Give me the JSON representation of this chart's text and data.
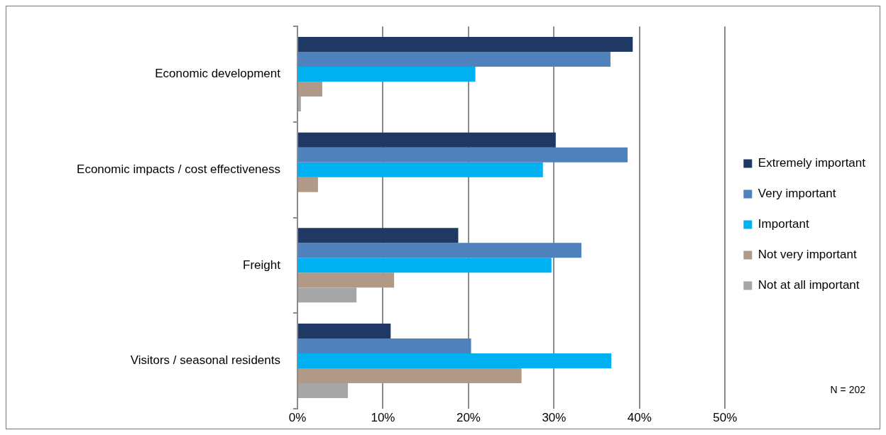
{
  "chart_data": {
    "type": "bar",
    "orientation": "horizontal",
    "categories": [
      "Economic development",
      "Economic impacts / cost effectiveness",
      "Freight",
      "Visitors / seasonal residents"
    ],
    "series": [
      {
        "name": "Extremely important",
        "color": "#1f3864",
        "values": [
          39.2,
          30.2,
          18.8,
          10.9
        ]
      },
      {
        "name": "Very important",
        "color": "#4f81bd",
        "values": [
          36.6,
          38.6,
          33.2,
          20.3
        ]
      },
      {
        "name": "Important",
        "color": "#00b0f0",
        "values": [
          20.8,
          28.7,
          29.7,
          36.7
        ]
      },
      {
        "name": "Not very important",
        "color": "#b09a87",
        "values": [
          2.9,
          2.4,
          11.3,
          26.2
        ]
      },
      {
        "name": "Not at all important",
        "color": "#a6a6a6",
        "values": [
          0.4,
          null,
          6.9,
          5.9
        ]
      }
    ],
    "xlim": [
      0,
      50
    ],
    "xticks": [
      {
        "value": 0,
        "label": "0%"
      },
      {
        "value": 10,
        "label": "10%"
      },
      {
        "value": 20,
        "label": "20%"
      },
      {
        "value": 30,
        "label": "30%"
      },
      {
        "value": 40,
        "label": "40%"
      },
      {
        "value": 50,
        "label": "50%"
      }
    ],
    "grid": "x",
    "legend": "right",
    "annotations": [
      "N = 202"
    ]
  }
}
